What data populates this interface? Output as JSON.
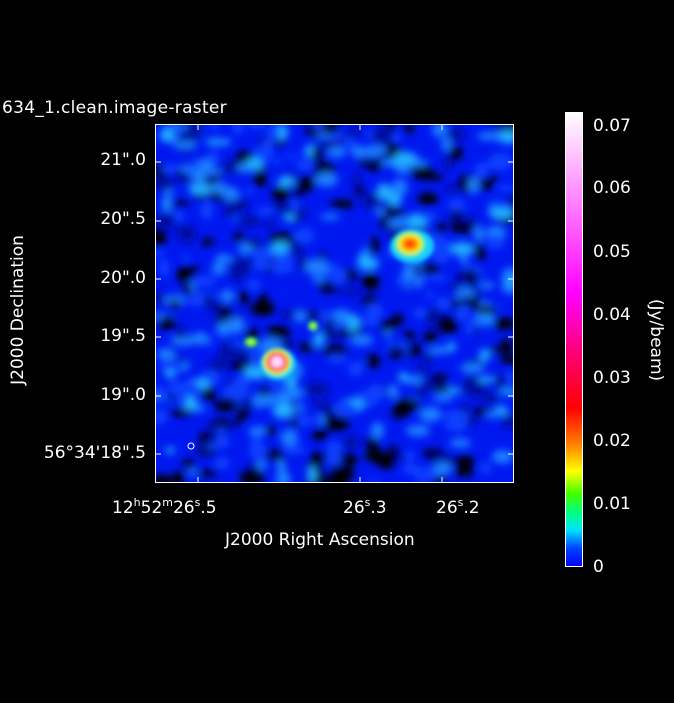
{
  "title": "634_1.clean.image-raster",
  "axes": {
    "x_label": "J2000 Right Ascension",
    "y_label": "J2000 Declination",
    "x_ticks": [
      {
        "h": "12",
        "hs": "h",
        "m": "52",
        "ms": "m",
        "s": "26",
        "ss": "s",
        "frac": ".5"
      },
      {
        "h": "",
        "hs": "",
        "m": "",
        "ms": "",
        "s": "26",
        "ss": "s",
        "frac": ".3"
      },
      {
        "h": "",
        "hs": "",
        "m": "",
        "ms": "",
        "s": "26",
        "ss": "s",
        "frac": ".2"
      }
    ],
    "y_ticks": [
      "21\".0",
      "20\".5",
      "20\".0",
      "19\".5",
      "19\".0",
      "56°34'18\".5"
    ]
  },
  "colorbar": {
    "label": "(Jy/beam)",
    "ticks": [
      "0.07",
      "0.06",
      "0.05",
      "0.04",
      "0.03",
      "0.02",
      "0.01",
      "0"
    ]
  },
  "colors": {
    "background": "#000000",
    "axes": "#ffffff",
    "low": "#0000ff",
    "high": "#ffffff"
  }
}
